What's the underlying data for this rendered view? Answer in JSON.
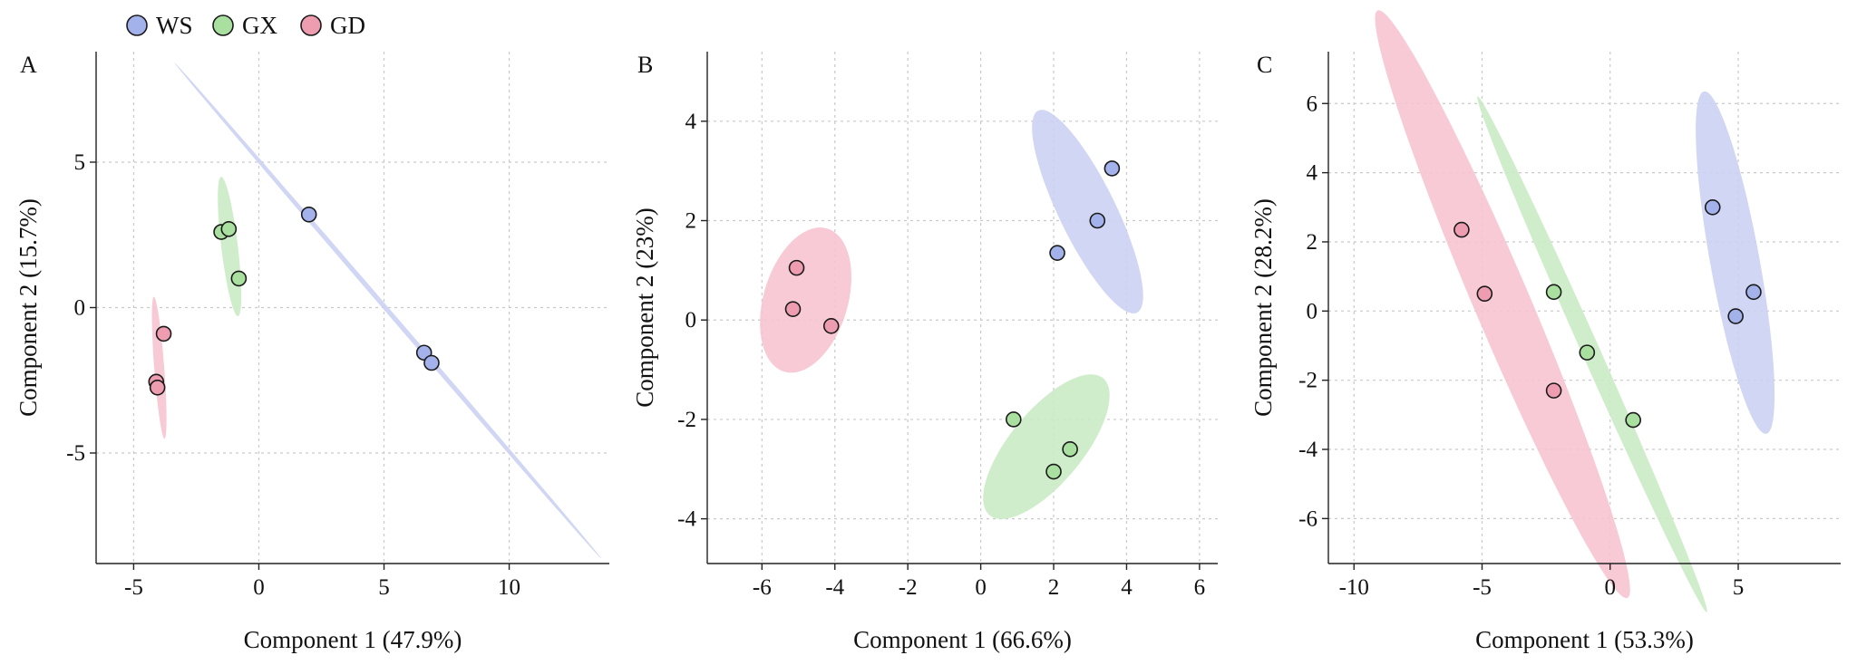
{
  "legend": [
    {
      "label": "WS",
      "color": "#a4b2ec"
    },
    {
      "label": "GX",
      "color": "#a9e0a0"
    },
    {
      "label": "GD",
      "color": "#ee9cb0"
    }
  ],
  "ellipse_colors": {
    "WS": "#c9d0f3",
    "GX": "#c9ebc4",
    "GD": "#f6c3d0"
  },
  "chart_data": [
    {
      "type": "scatter",
      "panel": "A",
      "xlabel": "Component 1 (47.9%)",
      "ylabel": "Component 2 (15.7%)",
      "xlim": [
        -6.5,
        14
      ],
      "ylim": [
        -8.8,
        8.8
      ],
      "xticks": [
        -5,
        0,
        5,
        10
      ],
      "yticks": [
        -5,
        0,
        5
      ],
      "xtick_labels": [
        "-5",
        "0",
        "5",
        "10"
      ],
      "ytick_labels": [
        "-5",
        "0",
        "5"
      ],
      "grid": true,
      "series": [
        {
          "name": "WS",
          "points": [
            [
              2.0,
              3.2
            ],
            [
              6.6,
              -1.55
            ],
            [
              6.9,
              -1.9
            ]
          ],
          "ellipse": {
            "cx": 5.15,
            "cy": -0.1,
            "rx": 12.05,
            "ry": 0.09,
            "angle": -45
          }
        },
        {
          "name": "GX",
          "points": [
            [
              -1.5,
              2.6
            ],
            [
              -1.2,
              2.7
            ],
            [
              -0.8,
              1.0
            ]
          ],
          "ellipse": {
            "cx": -1.17,
            "cy": 2.1,
            "rx": 2.42,
            "ry": 0.33,
            "angle": -82
          }
        },
        {
          "name": "GD",
          "points": [
            [
              -3.8,
              -0.9
            ],
            [
              -4.1,
              -2.55
            ],
            [
              -4.05,
              -2.75
            ]
          ],
          "ellipse": {
            "cx": -3.98,
            "cy": -2.07,
            "rx": 2.45,
            "ry": 0.2,
            "angle": -85
          }
        }
      ]
    },
    {
      "type": "scatter",
      "panel": "B",
      "xlabel": "Component 1 (66.6%)",
      "ylabel": "Component 2 (23%)",
      "xlim": [
        -7.5,
        6.5
      ],
      "ylim": [
        -4.9,
        5.4
      ],
      "xticks": [
        -6,
        -4,
        -2,
        0,
        2,
        4,
        6
      ],
      "yticks": [
        -4,
        -2,
        0,
        2,
        4
      ],
      "xtick_labels": [
        "-6",
        "-4",
        "-2",
        "0",
        "2",
        "4",
        "6"
      ],
      "ytick_labels": [
        "-4",
        "-2",
        "0",
        "2",
        "4"
      ],
      "grid": true,
      "series": [
        {
          "name": "WS",
          "points": [
            [
              2.1,
              1.35
            ],
            [
              3.2,
              2.0
            ],
            [
              3.6,
              3.05
            ]
          ],
          "ellipse": {
            "cx": 2.93,
            "cy": 2.18,
            "rx": 2.45,
            "ry": 0.72,
            "angle": -55
          }
        },
        {
          "name": "GX",
          "points": [
            [
              0.9,
              -2.0
            ],
            [
              2.0,
              -3.05
            ],
            [
              2.45,
              -2.6
            ]
          ],
          "ellipse": {
            "cx": 1.8,
            "cy": -2.55,
            "rx": 2.1,
            "ry": 0.85,
            "angle": 38
          }
        },
        {
          "name": "GD",
          "points": [
            [
              -5.05,
              1.05
            ],
            [
              -5.15,
              0.22
            ],
            [
              -4.1,
              -0.12
            ]
          ],
          "ellipse": {
            "cx": -4.8,
            "cy": 0.4,
            "rx": 1.58,
            "ry": 1.1,
            "angle": 58
          }
        }
      ]
    },
    {
      "type": "scatter",
      "panel": "C",
      "xlabel": "Component 1 (53.3%)",
      "ylabel": "Component 2 (28.2%)",
      "xlim": [
        -11,
        9
      ],
      "ylim": [
        -7.3,
        7.5
      ],
      "xticks": [
        -10,
        -5,
        0,
        5
      ],
      "yticks": [
        -6,
        -4,
        -2,
        0,
        2,
        4,
        6
      ],
      "xtick_labels": [
        "-10",
        "-5",
        "0",
        "5"
      ],
      "ytick_labels": [
        "-6",
        "-4",
        "-2",
        "0",
        "2",
        "4",
        "6"
      ],
      "grid": true,
      "series": [
        {
          "name": "WS",
          "points": [
            [
              4.0,
              3.0
            ],
            [
              5.6,
              0.55
            ],
            [
              4.9,
              -0.15
            ]
          ],
          "ellipse": {
            "cx": 4.88,
            "cy": 1.4,
            "rx": 5.1,
            "ry": 0.95,
            "angle": -76
          }
        },
        {
          "name": "GX",
          "points": [
            [
              -2.2,
              0.55
            ],
            [
              -0.9,
              -1.2
            ],
            [
              0.9,
              -3.15
            ]
          ],
          "ellipse": {
            "cx": -0.7,
            "cy": -1.25,
            "rx": 8.7,
            "ry": 0.33,
            "angle": -59
          }
        },
        {
          "name": "GD",
          "points": [
            [
              -5.8,
              2.35
            ],
            [
              -4.9,
              0.5
            ],
            [
              -2.2,
              -2.3
            ]
          ],
          "ellipse": {
            "cx": -4.2,
            "cy": 0.2,
            "rx": 9.8,
            "ry": 1.03,
            "angle": -60
          }
        }
      ]
    }
  ]
}
